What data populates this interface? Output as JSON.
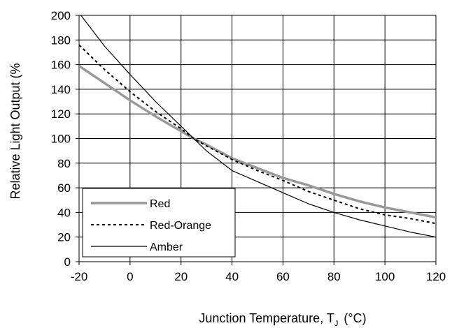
{
  "chart_data": {
    "type": "line",
    "title": "",
    "xlabel": "Junction Temperature, T",
    "xlabel_sub": "J",
    "xlabel_unit": "(°C)",
    "ylabel": "Relative Light Output (%",
    "xlim": [
      -20,
      120
    ],
    "ylim": [
      0,
      200
    ],
    "x_ticks": [
      -20,
      0,
      20,
      40,
      60,
      80,
      100,
      120
    ],
    "y_ticks": [
      0,
      20,
      40,
      60,
      80,
      100,
      120,
      140,
      160,
      180,
      200
    ],
    "grid": true,
    "legend_position": "bottom-left",
    "series": [
      {
        "name": "Red",
        "color": "#999999",
        "style": "solid-thick",
        "x": [
          -20,
          -10,
          0,
          10,
          20,
          25,
          30,
          40,
          50,
          60,
          70,
          80,
          90,
          100,
          110,
          120
        ],
        "y": [
          159,
          145,
          131,
          118,
          106,
          100,
          95,
          84,
          76,
          68,
          62,
          55,
          49,
          44,
          40,
          36
        ]
      },
      {
        "name": "Red-Orange",
        "color": "#000000",
        "style": "dotted",
        "x": [
          -20,
          -10,
          0,
          10,
          20,
          25,
          30,
          40,
          50,
          60,
          70,
          80,
          90,
          100,
          110,
          120
        ],
        "y": [
          176,
          156,
          138,
          122,
          108,
          100,
          94,
          83,
          74,
          66,
          57,
          50,
          43,
          38,
          35,
          31
        ]
      },
      {
        "name": "Amber",
        "color": "#000000",
        "style": "solid-thin",
        "x": [
          -20,
          -10,
          0,
          10,
          20,
          25,
          30,
          40,
          50,
          60,
          70,
          80,
          90,
          100,
          110,
          120
        ],
        "y": [
          202,
          175,
          152,
          130,
          110,
          100,
          90,
          74,
          65,
          56,
          47,
          40,
          34,
          29,
          24,
          20
        ]
      }
    ]
  }
}
